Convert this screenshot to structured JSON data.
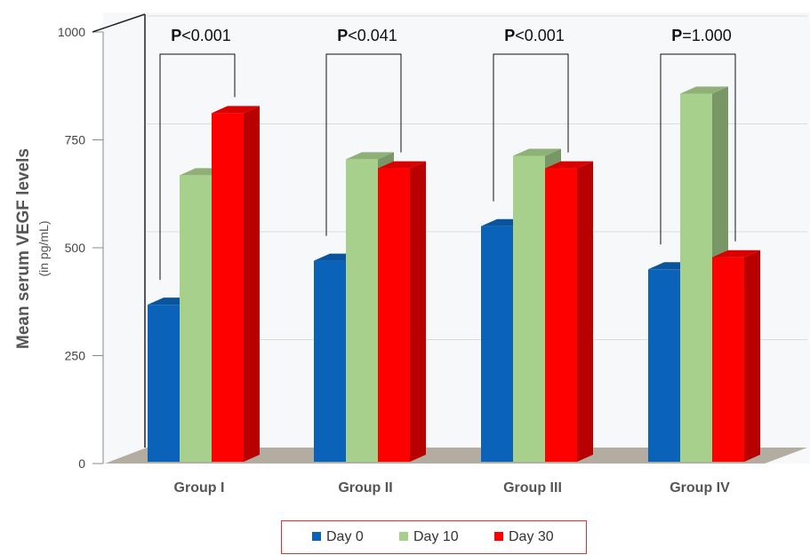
{
  "chart_data": {
    "type": "bar",
    "ylabel": "Mean serum VEGF levels",
    "ylabel_sub": "(in pg/mL)",
    "ylim": [
      0,
      1000
    ],
    "yticks": [
      "0",
      "250",
      "500",
      "750",
      "1000"
    ],
    "categories": [
      "Group I",
      "Group II",
      "Group III",
      "Group IV"
    ],
    "series": [
      {
        "name": "Day 0",
        "color": "#0a63b8",
        "values": [
          368,
          470,
          550,
          450
        ]
      },
      {
        "name": "Day 10",
        "color": "#a8d08d",
        "values": [
          668,
          705,
          713,
          857
        ]
      },
      {
        "name": "Day 30",
        "color": "#ff0000",
        "values": [
          812,
          684,
          684,
          478
        ]
      }
    ],
    "pvalue_prefix": "P",
    "pvalues": [
      "<0.001",
      "<0.041",
      "<0.001",
      "=1.000"
    ],
    "grid": true,
    "legend_position": "bottom"
  }
}
